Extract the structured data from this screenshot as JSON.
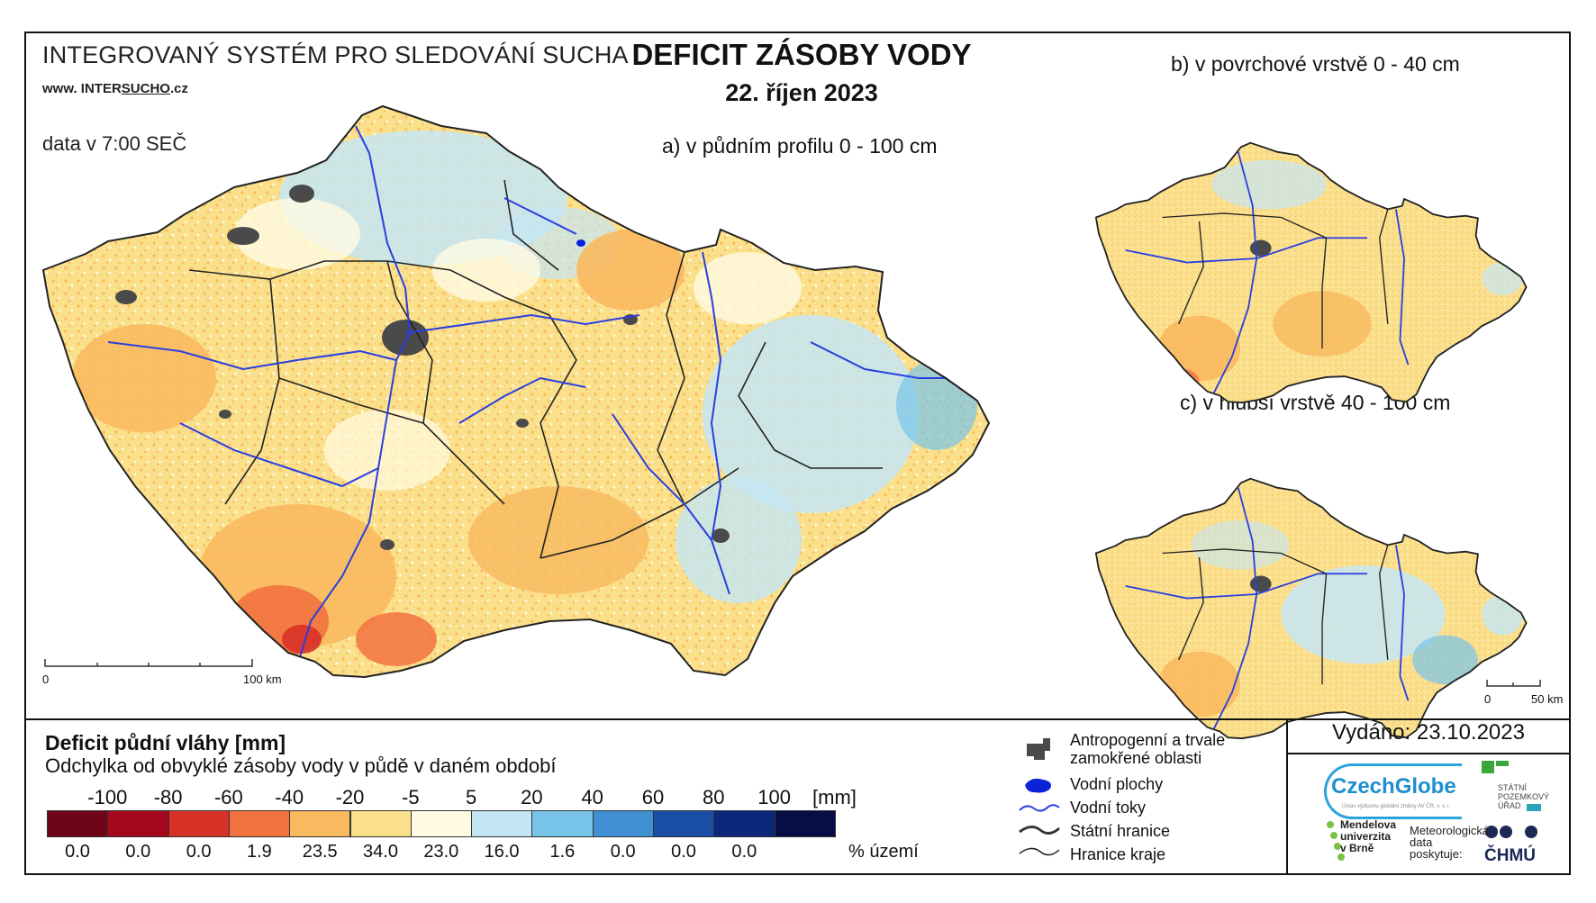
{
  "header": {
    "system_title": "INTEGROVANÝ SYSTÉM PRO SLEDOVÁNÍ SUCHA",
    "website_prefix": "www. INTER",
    "website_mid": "SUCHO",
    "website_suffix": ".cz",
    "data_time": "data v 7:00 SEČ",
    "main_title": "DEFICIT ZÁSOBY VODY",
    "date": "22. říjen 2023"
  },
  "maps": {
    "a_label": "a) v půdním profilu 0 - 100 cm",
    "b_label": "b) v povrchové vrstvě 0 - 40 cm",
    "c_label": "c) v hlubší vrstvě 40 - 100 cm",
    "scale_main": {
      "zero": "0",
      "end": "100 km"
    },
    "scale_small": {
      "zero": "0",
      "end": "50 km"
    }
  },
  "legend": {
    "title": "Deficit půdní vláhy  [mm]",
    "subtitle": "Odchylka od obvyklé zásoby vody v půdě v daném období",
    "unit": "[mm]",
    "percent_label": "% území",
    "ticks": [
      "-100",
      "-80",
      "-60",
      "-40",
      "-20",
      "-5",
      "5",
      "20",
      "40",
      "60",
      "80",
      "100"
    ],
    "classes": [
      {
        "color": "#6e0518",
        "percent": "0.0"
      },
      {
        "color": "#a3071c",
        "percent": "0.0"
      },
      {
        "color": "#d83228",
        "percent": "0.0"
      },
      {
        "color": "#f2733f",
        "percent": "1.9"
      },
      {
        "color": "#f9b95e",
        "percent": "23.5"
      },
      {
        "color": "#fbe08c",
        "percent": "34.0"
      },
      {
        "color": "#fffbe3",
        "percent": "23.0"
      },
      {
        "color": "#c4e6f4",
        "percent": "16.0"
      },
      {
        "color": "#78c3e8",
        "percent": "1.6"
      },
      {
        "color": "#3f8fd2",
        "percent": "0.0"
      },
      {
        "color": "#1a4fa8",
        "percent": "0.0"
      },
      {
        "color": "#0c2679",
        "percent": "0.0"
      },
      {
        "color": "#050e45",
        "percent": ""
      }
    ]
  },
  "symbols": {
    "anthropogenic_line1": "Antropogenní a trvale",
    "anthropogenic_line2": "zamokřené oblasti",
    "water_bodies": "Vodní plochy",
    "streams": "Vodní toky",
    "state_border": "Státní hranice",
    "region_border": "Hranice kraje"
  },
  "footer": {
    "issued": "Vydáno: 23.10.2023",
    "czechglobe": "CzechGlobe",
    "czechglobe_sub": "Ústav výzkumu globální změny AV ČR, v. v. i.",
    "spu_line1": "STÁTNÍ",
    "spu_line2": "POZEMKOVÝ",
    "spu_line3": "ÚŘAD",
    "mendel_line1": "Mendelova",
    "mendel_line2": "univerzita",
    "mendel_line3": "v Brně",
    "met_line1": "Meteorologická",
    "met_line2": "data",
    "met_line3": "poskytuje:",
    "chmu": "ČHMÚ"
  },
  "colors": {
    "river": "#2a3fe0",
    "border": "#222222",
    "urban": "#4a4a4a",
    "accent_blue": "#1d8fcf"
  }
}
